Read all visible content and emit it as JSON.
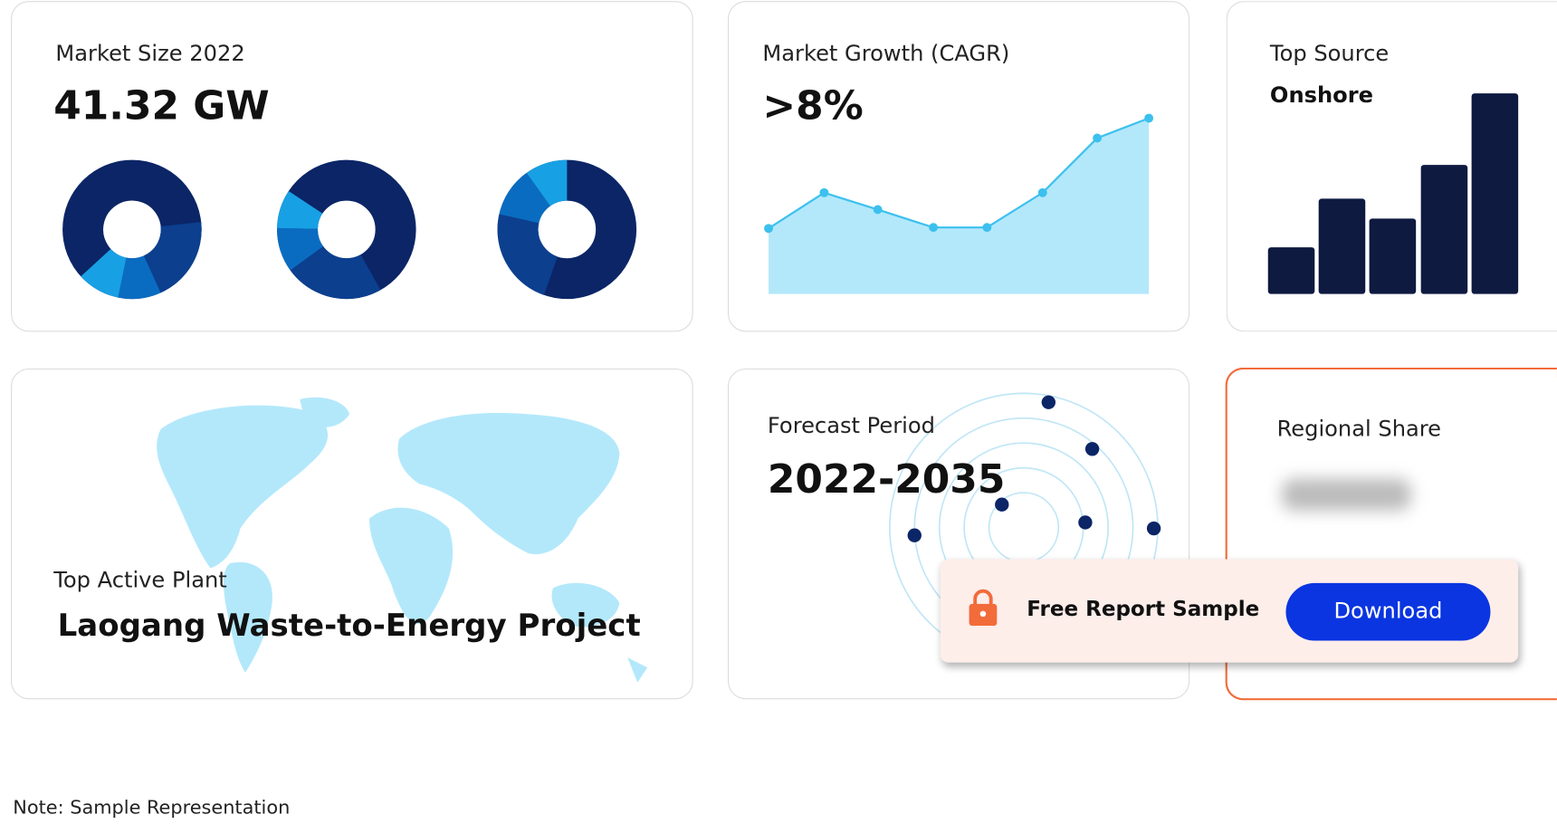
{
  "cards": [
    {
      "label": "Market Size 2022",
      "value": "41.32 GW"
    },
    {
      "label": "Market Growth (CAGR)",
      "value": ">8%"
    },
    {
      "label": "Top Source",
      "value": "Onshore"
    },
    {
      "label": "Top Active Plant",
      "value": "Laogang Waste-to-Energy Project"
    },
    {
      "label": "Forecast Period",
      "value": "2022-2035"
    },
    {
      "label": "Regional Share"
    }
  ],
  "cta": {
    "text": "Free Report Sample",
    "button": "Download"
  },
  "note": "Note: Sample Representation"
}
